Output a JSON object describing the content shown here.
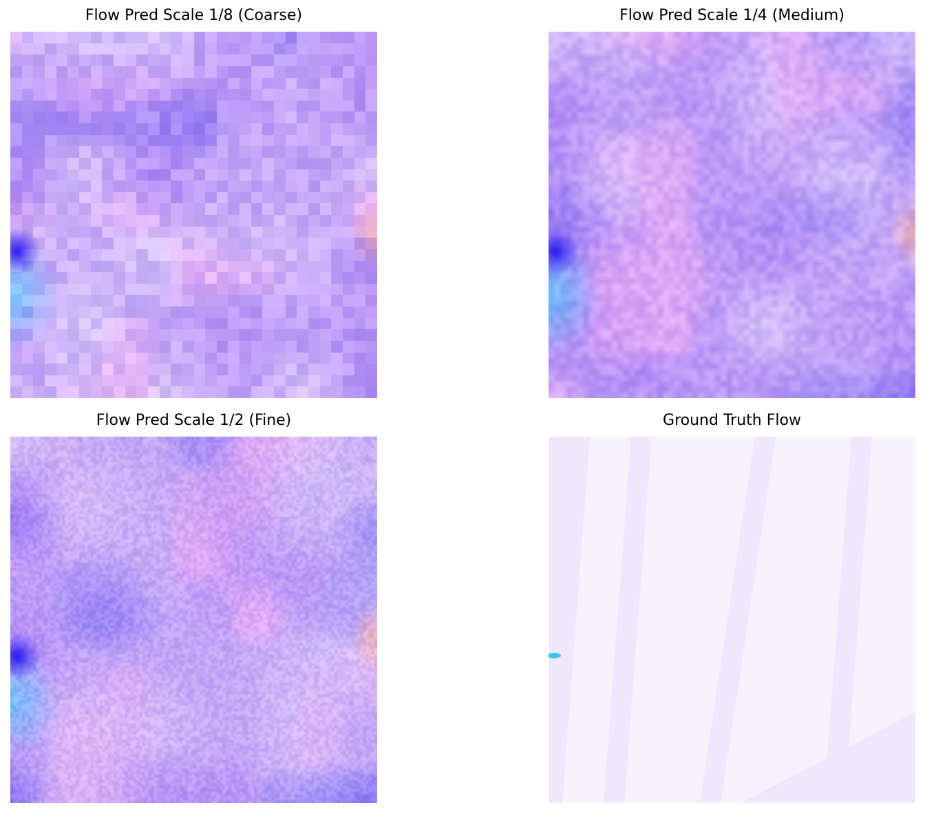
{
  "figure": {
    "panels": [
      {
        "title": "Flow Pred Scale 1/8 (Coarse)",
        "style": "coarse",
        "grid": 32
      },
      {
        "title": "Flow Pred Scale 1/4 (Medium)",
        "style": "medium",
        "grid": 64
      },
      {
        "title": "Flow Pred Scale 1/2 (Fine)",
        "style": "fine",
        "grid": 128
      },
      {
        "title": "Ground Truth Flow",
        "style": "gt",
        "grid": 0
      }
    ],
    "colors": {
      "violet": "#a77bf5",
      "blue": "#5a55f5",
      "pink": "#f0b0f5",
      "lavender": "#e6dcfa",
      "cyan": "#5fd0ff",
      "salmon": "#ffb4a0",
      "gt_base": "#f7f3fe",
      "gt_streak": "#efe8fc",
      "gt_spot": "#33c6f0"
    }
  }
}
